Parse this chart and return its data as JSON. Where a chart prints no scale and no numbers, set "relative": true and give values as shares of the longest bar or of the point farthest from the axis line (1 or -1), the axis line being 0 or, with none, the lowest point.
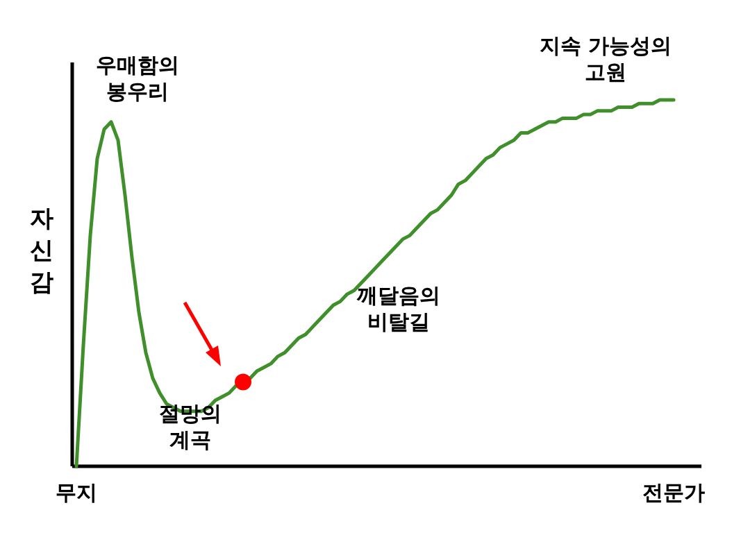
{
  "chart_data": {
    "type": "line",
    "relative": true,
    "ylabel": "자신감",
    "categories": [
      "무지",
      null,
      null,
      null,
      null,
      null,
      null,
      null,
      null,
      null,
      null,
      null,
      null,
      null,
      null,
      null,
      null,
      null,
      null,
      null,
      null,
      null,
      null,
      null,
      null,
      null,
      null,
      null,
      null,
      null,
      null,
      null,
      null,
      null,
      null,
      null,
      null,
      null,
      null,
      null,
      null,
      null,
      null,
      null,
      null,
      null,
      null,
      null,
      null,
      null,
      null,
      null,
      null,
      null,
      null,
      null,
      null,
      null,
      null,
      null,
      null,
      null,
      null,
      null,
      null,
      null,
      null,
      null,
      null,
      null,
      null,
      null,
      null,
      null,
      null,
      null,
      null,
      null,
      null,
      null,
      null,
      null,
      null,
      null,
      null,
      null,
      "전문가"
    ],
    "series": [
      {
        "type": "line",
        "color": "#3f8f2a",
        "values": [
          0,
          0.33,
          0.63,
          0.84,
          0.92,
          0.94,
          0.89,
          0.74,
          0.57,
          0.42,
          0.31,
          0.24,
          0.2,
          0.17,
          0.16,
          0.15,
          0.15,
          0.15,
          0.15,
          0.16,
          0.18,
          0.19,
          0.2,
          0.22,
          0.23,
          0.24,
          0.26,
          0.27,
          0.28,
          0.3,
          0.31,
          0.33,
          0.35,
          0.36,
          0.38,
          0.4,
          0.42,
          0.44,
          0.45,
          0.47,
          0.48,
          0.5,
          0.52,
          0.54,
          0.56,
          0.58,
          0.6,
          0.62,
          0.63,
          0.65,
          0.67,
          0.69,
          0.7,
          0.72,
          0.74,
          0.77,
          0.78,
          0.8,
          0.82,
          0.84,
          0.85,
          0.87,
          0.88,
          0.89,
          0.91,
          0.91,
          0.92,
          0.93,
          0.94,
          0.94,
          0.95,
          0.95,
          0.95,
          0.96,
          0.96,
          0.97,
          0.97,
          0.97,
          0.98,
          0.98,
          0.98,
          0.99,
          0.99,
          0.99,
          1,
          1,
          1
        ]
      },
      {
        "type": "scatter",
        "color": "#ff0000",
        "marker": "circle",
        "values": [
          null,
          null,
          null,
          null,
          null,
          null,
          null,
          null,
          null,
          null,
          null,
          null,
          null,
          null,
          null,
          null,
          null,
          null,
          null,
          null,
          null,
          null,
          null,
          null,
          0.23,
          null,
          null,
          null,
          null,
          null,
          null,
          null,
          null,
          null,
          null,
          null,
          null,
          null,
          null,
          null,
          null,
          null,
          null,
          null,
          null,
          null,
          null,
          null,
          null,
          null,
          null,
          null,
          null,
          null,
          null,
          null,
          null,
          null,
          null,
          null,
          null,
          null,
          null,
          null,
          null,
          null,
          null,
          null,
          null,
          null,
          null,
          null,
          null,
          null,
          null,
          null,
          null,
          null,
          null,
          null,
          null,
          null,
          null,
          null,
          null,
          null,
          null
        ]
      }
    ],
    "annotations": [
      "우매함의 봉우리",
      "절망의 계곡",
      "깨달음의 비탈길",
      "지속 가능성의 고원"
    ]
  }
}
